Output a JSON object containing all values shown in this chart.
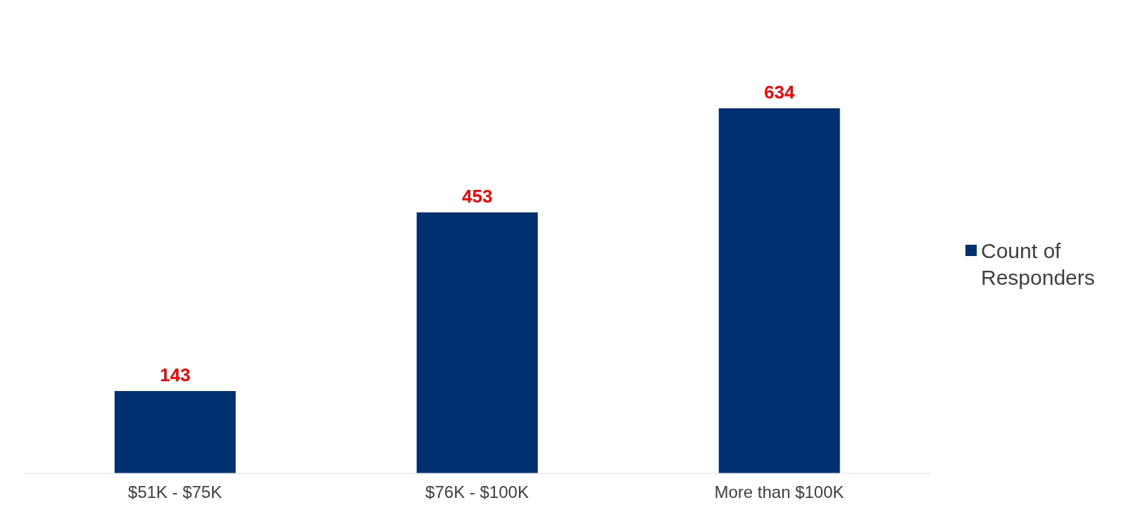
{
  "chart_data": {
    "type": "bar",
    "categories": [
      "$51K - $75K",
      "$76K - $100K",
      "More than $100K"
    ],
    "series": [
      {
        "name": "Count of Responders",
        "color": "#003070",
        "values": [
          143,
          453,
          634
        ]
      }
    ],
    "tick_labels": "x",
    "legend": "right",
    "data_labels": true
  }
}
